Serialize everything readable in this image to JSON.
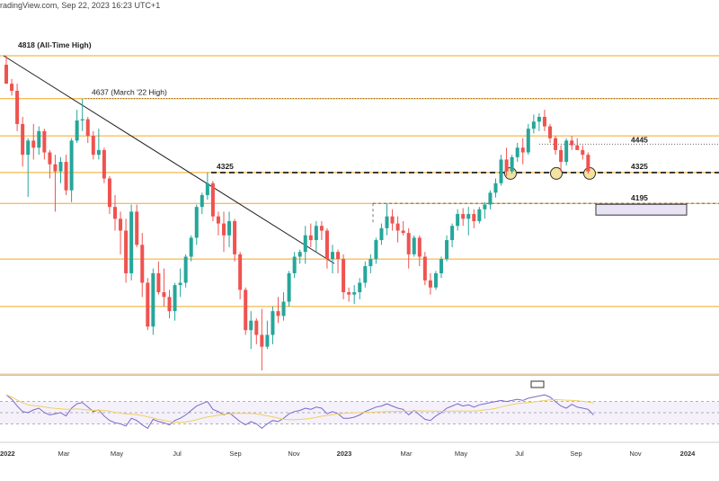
{
  "header": {
    "text": "radingView.com, Sep 22, 2023 16:23 UTC+1"
  },
  "colors": {
    "up": "#26a69a",
    "down": "#ef5350",
    "level": "#f5a623",
    "trend": "#222222",
    "rsi": "#7b68c8",
    "rsi_ma": "#f0d060",
    "box": "#e8e4f6"
  },
  "chart_data": [
    {
      "type": "candlestick",
      "title": "",
      "annotations": [
        {
          "text": "4818 (All-Time High)",
          "y": 4818
        },
        {
          "text": "4637 (March '22 High)",
          "y": 4637
        },
        {
          "text": "4325",
          "y": 4325
        },
        {
          "text": "4445",
          "y": 4445
        },
        {
          "text": "4325",
          "y": 4325
        },
        {
          "text": "4195",
          "y": 4195
        }
      ],
      "horizontal_levels": [
        4818,
        4637,
        4480,
        4325,
        4195,
        3960,
        3760,
        3470
      ],
      "x_ticks": [
        "2022",
        "Mar",
        "May",
        "Jul",
        "Sep",
        "Nov",
        "2023",
        "Mar",
        "May",
        "Jul",
        "Sep",
        "Nov",
        "2024"
      ],
      "ylim": [
        3450,
        4890
      ],
      "candles": [
        {
          "o": 4780,
          "h": 4818,
          "l": 4700,
          "c": 4700
        },
        {
          "o": 4700,
          "h": 4720,
          "l": 4650,
          "c": 4670
        },
        {
          "o": 4670,
          "h": 4700,
          "l": 4500,
          "c": 4530
        },
        {
          "o": 4530,
          "h": 4560,
          "l": 4350,
          "c": 4400
        },
        {
          "o": 4400,
          "h": 4470,
          "l": 4222,
          "c": 4460
        },
        {
          "o": 4460,
          "h": 4530,
          "l": 4380,
          "c": 4430
        },
        {
          "o": 4430,
          "h": 4520,
          "l": 4400,
          "c": 4500
        },
        {
          "o": 4500,
          "h": 4510,
          "l": 4380,
          "c": 4410
        },
        {
          "o": 4410,
          "h": 4420,
          "l": 4300,
          "c": 4360
        },
        {
          "o": 4360,
          "h": 4400,
          "l": 4160,
          "c": 4330
        },
        {
          "o": 4330,
          "h": 4390,
          "l": 4280,
          "c": 4370
        },
        {
          "o": 4370,
          "h": 4400,
          "l": 4230,
          "c": 4250
        },
        {
          "o": 4250,
          "h": 4470,
          "l": 4200,
          "c": 4460
        },
        {
          "o": 4460,
          "h": 4590,
          "l": 4450,
          "c": 4545
        },
        {
          "o": 4545,
          "h": 4637,
          "l": 4500,
          "c": 4550
        },
        {
          "o": 4550,
          "h": 4560,
          "l": 4450,
          "c": 4480
        },
        {
          "o": 4480,
          "h": 4500,
          "l": 4380,
          "c": 4400
        },
        {
          "o": 4400,
          "h": 4510,
          "l": 4380,
          "c": 4420
        },
        {
          "o": 4420,
          "h": 4430,
          "l": 4280,
          "c": 4300
        },
        {
          "o": 4300,
          "h": 4310,
          "l": 4150,
          "c": 4180
        },
        {
          "o": 4180,
          "h": 4230,
          "l": 4080,
          "c": 4130
        },
        {
          "o": 4130,
          "h": 4160,
          "l": 3980,
          "c": 4080
        },
        {
          "o": 4080,
          "h": 4130,
          "l": 3860,
          "c": 3900
        },
        {
          "o": 3900,
          "h": 4190,
          "l": 3870,
          "c": 4160
        },
        {
          "o": 4160,
          "h": 4190,
          "l": 4010,
          "c": 4020
        },
        {
          "o": 4020,
          "h": 4070,
          "l": 3800,
          "c": 3860
        },
        {
          "o": 3860,
          "h": 3880,
          "l": 3660,
          "c": 3675
        },
        {
          "o": 3675,
          "h": 3920,
          "l": 3640,
          "c": 3900
        },
        {
          "o": 3900,
          "h": 3950,
          "l": 3810,
          "c": 3820
        },
        {
          "o": 3820,
          "h": 3920,
          "l": 3760,
          "c": 3800
        },
        {
          "o": 3800,
          "h": 3830,
          "l": 3710,
          "c": 3740
        },
        {
          "o": 3740,
          "h": 3860,
          "l": 3700,
          "c": 3850
        },
        {
          "o": 3850,
          "h": 3920,
          "l": 3800,
          "c": 3860
        },
        {
          "o": 3860,
          "h": 3980,
          "l": 3840,
          "c": 3970
        },
        {
          "o": 3970,
          "h": 4060,
          "l": 3950,
          "c": 4050
        },
        {
          "o": 4050,
          "h": 4190,
          "l": 4020,
          "c": 4180
        },
        {
          "o": 4180,
          "h": 4240,
          "l": 4150,
          "c": 4230
        },
        {
          "o": 4230,
          "h": 4325,
          "l": 4210,
          "c": 4280
        },
        {
          "o": 4280,
          "h": 4290,
          "l": 4120,
          "c": 4140
        },
        {
          "o": 4140,
          "h": 4160,
          "l": 4060,
          "c": 4110
        },
        {
          "o": 4110,
          "h": 4160,
          "l": 3990,
          "c": 4060
        },
        {
          "o": 4060,
          "h": 4160,
          "l": 4010,
          "c": 4120
        },
        {
          "o": 4120,
          "h": 4130,
          "l": 3950,
          "c": 3980
        },
        {
          "o": 3980,
          "h": 3990,
          "l": 3790,
          "c": 3830
        },
        {
          "o": 3830,
          "h": 3840,
          "l": 3640,
          "c": 3660
        },
        {
          "o": 3660,
          "h": 3740,
          "l": 3580,
          "c": 3700
        },
        {
          "o": 3700,
          "h": 3710,
          "l": 3600,
          "c": 3640
        },
        {
          "o": 3640,
          "h": 3750,
          "l": 3490,
          "c": 3590
        },
        {
          "o": 3590,
          "h": 3700,
          "l": 3580,
          "c": 3640
        },
        {
          "o": 3640,
          "h": 3760,
          "l": 3600,
          "c": 3740
        },
        {
          "o": 3740,
          "h": 3800,
          "l": 3690,
          "c": 3720
        },
        {
          "o": 3720,
          "h": 3820,
          "l": 3700,
          "c": 3780
        },
        {
          "o": 3780,
          "h": 3910,
          "l": 3760,
          "c": 3900
        },
        {
          "o": 3900,
          "h": 3990,
          "l": 3880,
          "c": 3970
        },
        {
          "o": 3970,
          "h": 4000,
          "l": 3940,
          "c": 3990
        },
        {
          "o": 3990,
          "h": 4100,
          "l": 3940,
          "c": 4060
        },
        {
          "o": 4060,
          "h": 4110,
          "l": 4010,
          "c": 4040
        },
        {
          "o": 4040,
          "h": 4120,
          "l": 3990,
          "c": 4100
        },
        {
          "o": 4100,
          "h": 4120,
          "l": 4040,
          "c": 4080
        },
        {
          "o": 4080,
          "h": 4090,
          "l": 3920,
          "c": 3960
        },
        {
          "o": 3960,
          "h": 4020,
          "l": 3900,
          "c": 3990
        },
        {
          "o": 3990,
          "h": 4000,
          "l": 3900,
          "c": 3960
        },
        {
          "o": 3960,
          "h": 3980,
          "l": 3790,
          "c": 3820
        },
        {
          "o": 3820,
          "h": 3840,
          "l": 3780,
          "c": 3810
        },
        {
          "o": 3810,
          "h": 3850,
          "l": 3770,
          "c": 3820
        },
        {
          "o": 3820,
          "h": 3880,
          "l": 3790,
          "c": 3860
        },
        {
          "o": 3860,
          "h": 3950,
          "l": 3840,
          "c": 3930
        },
        {
          "o": 3930,
          "h": 3980,
          "l": 3900,
          "c": 3960
        },
        {
          "o": 3960,
          "h": 4050,
          "l": 3940,
          "c": 4040
        },
        {
          "o": 4040,
          "h": 4110,
          "l": 4020,
          "c": 4090
        },
        {
          "o": 4090,
          "h": 4195,
          "l": 4060,
          "c": 4140
        },
        {
          "o": 4140,
          "h": 4170,
          "l": 4080,
          "c": 4110
        },
        {
          "o": 4110,
          "h": 4140,
          "l": 4030,
          "c": 4080
        },
        {
          "o": 4080,
          "h": 4120,
          "l": 4060,
          "c": 4070
        },
        {
          "o": 4070,
          "h": 4090,
          "l": 3920,
          "c": 3980
        },
        {
          "o": 3980,
          "h": 4060,
          "l": 3970,
          "c": 4050
        },
        {
          "o": 4050,
          "h": 4060,
          "l": 3930,
          "c": 3970
        },
        {
          "o": 3970,
          "h": 3990,
          "l": 3850,
          "c": 3870
        },
        {
          "o": 3870,
          "h": 3900,
          "l": 3810,
          "c": 3840
        },
        {
          "o": 3840,
          "h": 3910,
          "l": 3830,
          "c": 3900
        },
        {
          "o": 3900,
          "h": 3970,
          "l": 3880,
          "c": 3960
        },
        {
          "o": 3960,
          "h": 4060,
          "l": 3950,
          "c": 4040
        },
        {
          "o": 4040,
          "h": 4110,
          "l": 4010,
          "c": 4100
        },
        {
          "o": 4100,
          "h": 4170,
          "l": 4080,
          "c": 4150
        },
        {
          "o": 4150,
          "h": 4175,
          "l": 4100,
          "c": 4130
        },
        {
          "o": 4130,
          "h": 4180,
          "l": 4060,
          "c": 4150
        },
        {
          "o": 4150,
          "h": 4170,
          "l": 4090,
          "c": 4120
        },
        {
          "o": 4120,
          "h": 4180,
          "l": 4110,
          "c": 4170
        },
        {
          "o": 4170,
          "h": 4200,
          "l": 4130,
          "c": 4190
        },
        {
          "o": 4190,
          "h": 4250,
          "l": 4170,
          "c": 4240
        },
        {
          "o": 4240,
          "h": 4300,
          "l": 4220,
          "c": 4280
        },
        {
          "o": 4280,
          "h": 4400,
          "l": 4270,
          "c": 4380
        },
        {
          "o": 4380,
          "h": 4430,
          "l": 4310,
          "c": 4330
        },
        {
          "o": 4330,
          "h": 4400,
          "l": 4320,
          "c": 4390
        },
        {
          "o": 4390,
          "h": 4450,
          "l": 4370,
          "c": 4430
        },
        {
          "o": 4430,
          "h": 4470,
          "l": 4360,
          "c": 4410
        },
        {
          "o": 4410,
          "h": 4530,
          "l": 4400,
          "c": 4510
        },
        {
          "o": 4510,
          "h": 4570,
          "l": 4490,
          "c": 4540
        },
        {
          "o": 4540,
          "h": 4575,
          "l": 4500,
          "c": 4560
        },
        {
          "o": 4560,
          "h": 4590,
          "l": 4500,
          "c": 4520
        },
        {
          "o": 4520,
          "h": 4530,
          "l": 4450,
          "c": 4470
        },
        {
          "o": 4470,
          "h": 4480,
          "l": 4400,
          "c": 4420
        },
        {
          "o": 4420,
          "h": 4440,
          "l": 4330,
          "c": 4370
        },
        {
          "o": 4370,
          "h": 4470,
          "l": 4355,
          "c": 4460
        },
        {
          "o": 4460,
          "h": 4480,
          "l": 4420,
          "c": 4440
        },
        {
          "o": 4440,
          "h": 4470,
          "l": 4420,
          "c": 4420
        },
        {
          "o": 4420,
          "h": 4440,
          "l": 4380,
          "c": 4400
        },
        {
          "o": 4400,
          "h": 4410,
          "l": 4320,
          "c": 4330
        }
      ]
    },
    {
      "type": "line",
      "title": "",
      "note": "RSI panel",
      "ylim": [
        0,
        100
      ],
      "guides": [
        70,
        50,
        30
      ],
      "series": [
        {
          "values": [
            82,
            74,
            62,
            52,
            50,
            55,
            58,
            50,
            46,
            48,
            50,
            44,
            58,
            66,
            68,
            60,
            52,
            55,
            44,
            36,
            32,
            30,
            26,
            40,
            36,
            28,
            22,
            38,
            34,
            32,
            28,
            36,
            40,
            46,
            54,
            62,
            66,
            70,
            56,
            52,
            46,
            50,
            42,
            34,
            28,
            34,
            30,
            22,
            30,
            36,
            34,
            40,
            48,
            52,
            54,
            58,
            56,
            60,
            58,
            48,
            52,
            48,
            40,
            40,
            42,
            46,
            52,
            56,
            60,
            62,
            66,
            62,
            58,
            56,
            46,
            54,
            46,
            38,
            36,
            44,
            50,
            58,
            62,
            66,
            62,
            64,
            60,
            64,
            66,
            68,
            70,
            72,
            70,
            72,
            74,
            72,
            76,
            78,
            80,
            82,
            78,
            70,
            62,
            58,
            65,
            60,
            58,
            56,
            46
          ]
        }
      ]
    }
  ]
}
